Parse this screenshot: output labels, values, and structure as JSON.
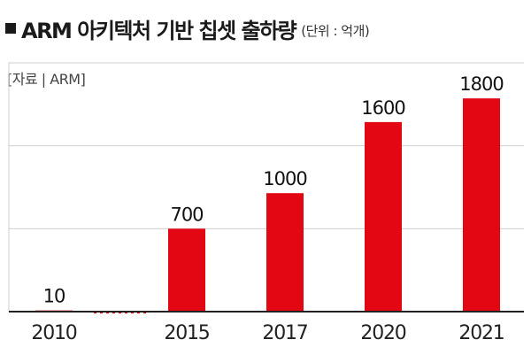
{
  "header": {
    "title": "ARM 아키텍처 기반 칩셋 출하량",
    "unit_note": "(단위 : 억개)",
    "source": "[자료 | ARM]"
  },
  "colors": {
    "bar": "#e30613",
    "gridline": "#cfcfcf",
    "axis": "#222222",
    "gap_dots": "#e30613"
  },
  "chart_data": {
    "type": "bar",
    "title": "ARM 아키텍처 기반 칩셋 출하량",
    "unit": "억개",
    "categories": [
      "2010",
      "2015",
      "2017",
      "2020",
      "2021"
    ],
    "values": [
      10,
      700,
      1000,
      1600,
      1800
    ],
    "data_labels": [
      "10",
      "700",
      "1000",
      "1600",
      "1800"
    ],
    "ylim": [
      0,
      2100
    ],
    "gridlines": [
      700,
      1400,
      2100
    ],
    "grid": true,
    "legend": "none",
    "axis_break_between": [
      "2010",
      "2015"
    ]
  }
}
